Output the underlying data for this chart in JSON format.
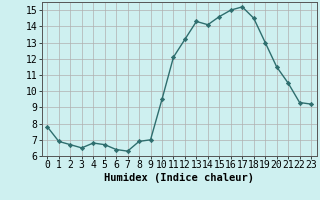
{
  "x": [
    0,
    1,
    2,
    3,
    4,
    5,
    6,
    7,
    8,
    9,
    10,
    11,
    12,
    13,
    14,
    15,
    16,
    17,
    18,
    19,
    20,
    21,
    22,
    23
  ],
  "y": [
    7.8,
    6.9,
    6.7,
    6.5,
    6.8,
    6.7,
    6.4,
    6.3,
    6.9,
    7.0,
    9.5,
    12.1,
    13.2,
    14.3,
    14.1,
    14.6,
    15.0,
    15.2,
    14.5,
    13.0,
    11.5,
    10.5,
    9.3,
    9.2
  ],
  "xlabel": "Humidex (Indice chaleur)",
  "xlim": [
    -0.5,
    23.5
  ],
  "ylim": [
    6,
    15.5
  ],
  "yticks": [
    6,
    7,
    8,
    9,
    10,
    11,
    12,
    13,
    14,
    15
  ],
  "xticks": [
    0,
    1,
    2,
    3,
    4,
    5,
    6,
    7,
    8,
    9,
    10,
    11,
    12,
    13,
    14,
    15,
    16,
    17,
    18,
    19,
    20,
    21,
    22,
    23
  ],
  "line_color": "#2e6e6e",
  "marker": "D",
  "marker_size": 2.2,
  "bg_color": "#cef0f0",
  "grid_color_major": "#b0b0b0",
  "grid_color_minor": "#d0e8e8",
  "xlabel_fontsize": 7.5,
  "tick_fontsize": 7,
  "line_width": 1.0
}
